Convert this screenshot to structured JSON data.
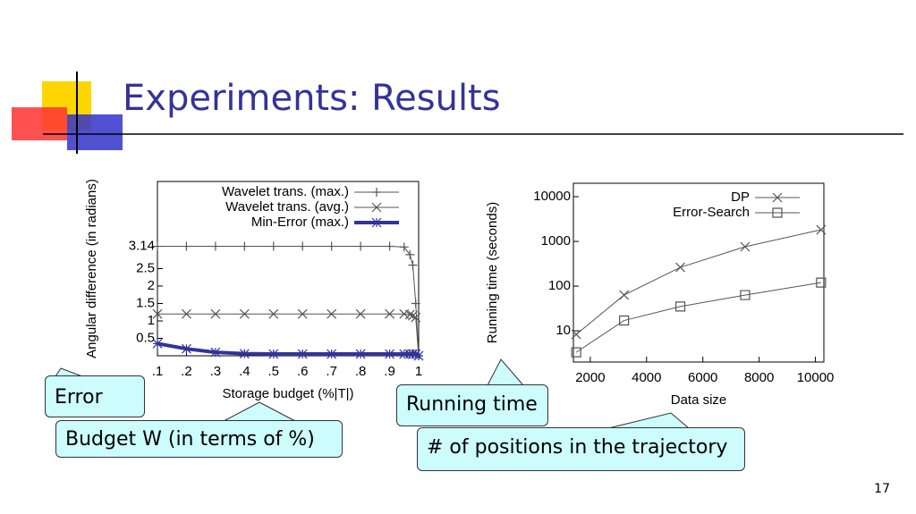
{
  "slide": {
    "title": "Experiments: Results",
    "page_number": "17",
    "callouts": [
      "Error",
      "Budget W (in terms of %)",
      "Running time",
      "# of positions in the trajectory"
    ]
  },
  "chart_data": [
    {
      "type": "line",
      "xlabel": "Storage budget (%|T|)",
      "ylabel": "Angular difference (in radians)",
      "x": [
        0.1,
        0.2,
        0.3,
        0.4,
        0.5,
        0.6,
        0.7,
        0.8,
        0.9,
        0.95,
        0.97,
        0.98,
        0.99,
        1
      ],
      "xlim": [
        0.1,
        1
      ],
      "xticks": [
        {
          "value": 0.1,
          "label": ".1"
        },
        {
          "value": 0.2,
          "label": ".2"
        },
        {
          "value": 0.3,
          "label": ".3"
        },
        {
          "value": 0.4,
          "label": ".4"
        },
        {
          "value": 0.5,
          "label": ".5"
        },
        {
          "value": 0.6,
          "label": ".6"
        },
        {
          "value": 0.7,
          "label": ".7"
        },
        {
          "value": 0.8,
          "label": ".8"
        },
        {
          "value": 0.9,
          "label": ".9"
        },
        1
      ],
      "ylim": [
        0,
        5
      ],
      "yticks": [
        0.5,
        1,
        1.5,
        2,
        2.5,
        3.14
      ],
      "series": [
        {
          "name": "Wavelet trans. (max.)",
          "color": "#555555",
          "marker": "plus",
          "values": [
            3.14,
            3.14,
            3.14,
            3.14,
            3.14,
            3.14,
            3.14,
            3.14,
            3.14,
            3.12,
            2.9,
            2.6,
            1.5,
            0
          ]
        },
        {
          "name": "Wavelet trans. (avg.)",
          "color": "#555555",
          "marker": "cross",
          "values": [
            1.2,
            1.2,
            1.2,
            1.2,
            1.2,
            1.2,
            1.2,
            1.2,
            1.2,
            1.2,
            1.18,
            1.15,
            1.1,
            0
          ]
        },
        {
          "name": "Min-Error (max.)",
          "color": "#333399",
          "marker": "star",
          "width": 4,
          "values": [
            0.35,
            0.2,
            0.1,
            0.06,
            0.05,
            0.05,
            0.05,
            0.05,
            0.05,
            0.05,
            0.05,
            0.05,
            0.05,
            0
          ]
        }
      ]
    },
    {
      "type": "line",
      "xlabel": "Data size",
      "ylabel": "Running time (seconds)",
      "log_y": true,
      "x": [
        1500,
        3200,
        5200,
        7500,
        10200
      ],
      "xlim": [
        1400,
        10300
      ],
      "xticks": [
        2000,
        4000,
        6000,
        8000,
        10000
      ],
      "ylim": [
        2,
        20000
      ],
      "yticks": [
        10,
        100,
        1000,
        10000
      ],
      "series": [
        {
          "name": "DP",
          "color": "#555555",
          "marker": "cross",
          "values": [
            8.3,
            63,
            263,
            760,
            1820
          ]
        },
        {
          "name": "Error-Search",
          "color": "#555555",
          "marker": "square",
          "values": [
            3.3,
            17,
            35,
            63,
            120
          ]
        }
      ]
    }
  ]
}
